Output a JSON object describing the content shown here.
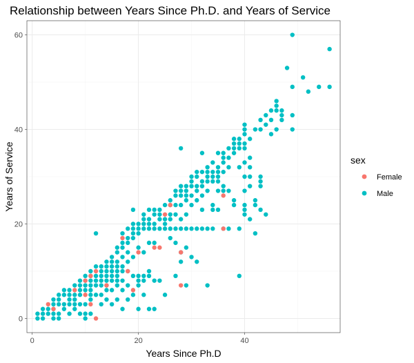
{
  "chart_data": {
    "type": "scatter",
    "title": "Relationship between Years Since Ph.D. and Years of Service",
    "xlabel": "Years Since Ph.D",
    "ylabel": "Years of Service",
    "xlim": [
      -1,
      58
    ],
    "ylim": [
      -3,
      63
    ],
    "x_ticks": [
      0,
      20,
      40
    ],
    "y_ticks": [
      0,
      20,
      40,
      60
    ],
    "grid": true,
    "legend": {
      "title": "sex",
      "position": "right",
      "entries": [
        {
          "name": "Female",
          "color": "#F8766D"
        },
        {
          "name": "Male",
          "color": "#00BFC4"
        }
      ]
    },
    "series": [
      {
        "name": "Male",
        "color": "#00BFC4",
        "points": [
          [
            1,
            0
          ],
          [
            1,
            1
          ],
          [
            2,
            0
          ],
          [
            2,
            1
          ],
          [
            2,
            2
          ],
          [
            3,
            1
          ],
          [
            3,
            2
          ],
          [
            4,
            0
          ],
          [
            4,
            1
          ],
          [
            4,
            2
          ],
          [
            4,
            3
          ],
          [
            4,
            4
          ],
          [
            5,
            0
          ],
          [
            5,
            1
          ],
          [
            5,
            3
          ],
          [
            5,
            4
          ],
          [
            5,
            5
          ],
          [
            6,
            2
          ],
          [
            6,
            3
          ],
          [
            6,
            5
          ],
          [
            6,
            6
          ],
          [
            7,
            1
          ],
          [
            7,
            3
          ],
          [
            7,
            4
          ],
          [
            7,
            5
          ],
          [
            7,
            6
          ],
          [
            8,
            2
          ],
          [
            8,
            3
          ],
          [
            8,
            4
          ],
          [
            8,
            5
          ],
          [
            8,
            7
          ],
          [
            9,
            1
          ],
          [
            9,
            3
          ],
          [
            9,
            5
          ],
          [
            9,
            6
          ],
          [
            9,
            7
          ],
          [
            9,
            8
          ],
          [
            10,
            0
          ],
          [
            10,
            1
          ],
          [
            10,
            3
          ],
          [
            10,
            6
          ],
          [
            10,
            7
          ],
          [
            10,
            8
          ],
          [
            10,
            9
          ],
          [
            11,
            1
          ],
          [
            11,
            4
          ],
          [
            11,
            5
          ],
          [
            11,
            6
          ],
          [
            11,
            7
          ],
          [
            11,
            8
          ],
          [
            11,
            9
          ],
          [
            11,
            10
          ],
          [
            12,
            5
          ],
          [
            12,
            7
          ],
          [
            12,
            8
          ],
          [
            12,
            9
          ],
          [
            12,
            11
          ],
          [
            12,
            18
          ],
          [
            13,
            3
          ],
          [
            13,
            5
          ],
          [
            13,
            7
          ],
          [
            13,
            8
          ],
          [
            13,
            9
          ],
          [
            13,
            10
          ],
          [
            13,
            11
          ],
          [
            14,
            4
          ],
          [
            14,
            6
          ],
          [
            14,
            7
          ],
          [
            14,
            8
          ],
          [
            14,
            9
          ],
          [
            14,
            10
          ],
          [
            14,
            11
          ],
          [
            14,
            12
          ],
          [
            15,
            3
          ],
          [
            15,
            6
          ],
          [
            15,
            8
          ],
          [
            15,
            9
          ],
          [
            15,
            10
          ],
          [
            15,
            11
          ],
          [
            15,
            12
          ],
          [
            15,
            13
          ],
          [
            16,
            4
          ],
          [
            16,
            7
          ],
          [
            16,
            8
          ],
          [
            16,
            9
          ],
          [
            16,
            10
          ],
          [
            16,
            11
          ],
          [
            16,
            12
          ],
          [
            16,
            14
          ],
          [
            16,
            15
          ],
          [
            17,
            2
          ],
          [
            17,
            6
          ],
          [
            17,
            8
          ],
          [
            17,
            10
          ],
          [
            17,
            11
          ],
          [
            17,
            13
          ],
          [
            17,
            15
          ],
          [
            17,
            16
          ],
          [
            17,
            18
          ],
          [
            18,
            4
          ],
          [
            18,
            7
          ],
          [
            18,
            10
          ],
          [
            18,
            12
          ],
          [
            18,
            14
          ],
          [
            18,
            16
          ],
          [
            18,
            17
          ],
          [
            18,
            19
          ],
          [
            19,
            5
          ],
          [
            19,
            9
          ],
          [
            19,
            13
          ],
          [
            19,
            17
          ],
          [
            19,
            18
          ],
          [
            19,
            19
          ],
          [
            19,
            20
          ],
          [
            19,
            23
          ],
          [
            20,
            2
          ],
          [
            20,
            7
          ],
          [
            20,
            8
          ],
          [
            20,
            9
          ],
          [
            20,
            15
          ],
          [
            20,
            18
          ],
          [
            20,
            19
          ],
          [
            20,
            20
          ],
          [
            21,
            5
          ],
          [
            21,
            8
          ],
          [
            21,
            9
          ],
          [
            21,
            14
          ],
          [
            21,
            19
          ],
          [
            21,
            20
          ],
          [
            21,
            21
          ],
          [
            21,
            22
          ],
          [
            22,
            2
          ],
          [
            22,
            9
          ],
          [
            22,
            10
          ],
          [
            22,
            16
          ],
          [
            22,
            19
          ],
          [
            22,
            20
          ],
          [
            22,
            21
          ],
          [
            22,
            23
          ],
          [
            23,
            2
          ],
          [
            23,
            8
          ],
          [
            23,
            16
          ],
          [
            23,
            19
          ],
          [
            23,
            20
          ],
          [
            23,
            22
          ],
          [
            23,
            23
          ],
          [
            24,
            8
          ],
          [
            24,
            19
          ],
          [
            24,
            21
          ],
          [
            24,
            22
          ],
          [
            24,
            23
          ],
          [
            25,
            5
          ],
          [
            25,
            19
          ],
          [
            25,
            20
          ],
          [
            25,
            21
          ],
          [
            25,
            24
          ],
          [
            26,
            17
          ],
          [
            26,
            19
          ],
          [
            26,
            21
          ],
          [
            26,
            22
          ],
          [
            26,
            24
          ],
          [
            26,
            25
          ],
          [
            27,
            9
          ],
          [
            27,
            16
          ],
          [
            27,
            19
          ],
          [
            27,
            22
          ],
          [
            27,
            24
          ],
          [
            27,
            26
          ],
          [
            27,
            27
          ],
          [
            28,
            12
          ],
          [
            28,
            14
          ],
          [
            28,
            19
          ],
          [
            28,
            21
          ],
          [
            28,
            24
          ],
          [
            28,
            26
          ],
          [
            28,
            27
          ],
          [
            28,
            28
          ],
          [
            28,
            36
          ],
          [
            29,
            7
          ],
          [
            29,
            15
          ],
          [
            29,
            19
          ],
          [
            29,
            22
          ],
          [
            29,
            25
          ],
          [
            29,
            26
          ],
          [
            29,
            27
          ],
          [
            29,
            28
          ],
          [
            30,
            13
          ],
          [
            30,
            19
          ],
          [
            30,
            24
          ],
          [
            30,
            26
          ],
          [
            30,
            28
          ],
          [
            30,
            29
          ],
          [
            30,
            30
          ],
          [
            31,
            12
          ],
          [
            31,
            19
          ],
          [
            31,
            25
          ],
          [
            31,
            27
          ],
          [
            31,
            28
          ],
          [
            31,
            30
          ],
          [
            31,
            31
          ],
          [
            32,
            19
          ],
          [
            32,
            23
          ],
          [
            32,
            26
          ],
          [
            32,
            28
          ],
          [
            32,
            29
          ],
          [
            32,
            31
          ],
          [
            32,
            35
          ],
          [
            33,
            7
          ],
          [
            33,
            19
          ],
          [
            33,
            27
          ],
          [
            33,
            29
          ],
          [
            33,
            30
          ],
          [
            33,
            31
          ],
          [
            33,
            32
          ],
          [
            34,
            19
          ],
          [
            34,
            23
          ],
          [
            34,
            24
          ],
          [
            34,
            29
          ],
          [
            34,
            30
          ],
          [
            34,
            31
          ],
          [
            34,
            33
          ],
          [
            35,
            23
          ],
          [
            35,
            27
          ],
          [
            35,
            29
          ],
          [
            35,
            30
          ],
          [
            35,
            31
          ],
          [
            35,
            32
          ],
          [
            35,
            35
          ],
          [
            36,
            19
          ],
          [
            36,
            27
          ],
          [
            36,
            28
          ],
          [
            36,
            31
          ],
          [
            36,
            33
          ],
          [
            36,
            34
          ],
          [
            36,
            35
          ],
          [
            37,
            19
          ],
          [
            37,
            27
          ],
          [
            37,
            32
          ],
          [
            37,
            34
          ],
          [
            37,
            36
          ],
          [
            38,
            24
          ],
          [
            38,
            25
          ],
          [
            38,
            35
          ],
          [
            38,
            36
          ],
          [
            38,
            37
          ],
          [
            38,
            38
          ],
          [
            39,
            9
          ],
          [
            39,
            19
          ],
          [
            39,
            32
          ],
          [
            39,
            36
          ],
          [
            39,
            37
          ],
          [
            39,
            38
          ],
          [
            40,
            22
          ],
          [
            40,
            23
          ],
          [
            40,
            24
          ],
          [
            40,
            27
          ],
          [
            40,
            30
          ],
          [
            40,
            33
          ],
          [
            40,
            36
          ],
          [
            40,
            37
          ],
          [
            40,
            39
          ],
          [
            40,
            40
          ],
          [
            40,
            41
          ],
          [
            41,
            21
          ],
          [
            41,
            28
          ],
          [
            41,
            30
          ],
          [
            41,
            32
          ],
          [
            41,
            34
          ],
          [
            41,
            38
          ],
          [
            42,
            18
          ],
          [
            42,
            24
          ],
          [
            42,
            25
          ],
          [
            42,
            40
          ],
          [
            43,
            23
          ],
          [
            43,
            28
          ],
          [
            43,
            29
          ],
          [
            43,
            30
          ],
          [
            43,
            40
          ],
          [
            43,
            42
          ],
          [
            44,
            22
          ],
          [
            44,
            41
          ],
          [
            44,
            43
          ],
          [
            45,
            39
          ],
          [
            45,
            42
          ],
          [
            45,
            44
          ],
          [
            46,
            40
          ],
          [
            46,
            44
          ],
          [
            46,
            45
          ],
          [
            46,
            46
          ],
          [
            47,
            42
          ],
          [
            47,
            43
          ],
          [
            47,
            44
          ],
          [
            48,
            53
          ],
          [
            49,
            40
          ],
          [
            49,
            43
          ],
          [
            49,
            49
          ],
          [
            49,
            60
          ],
          [
            51,
            51
          ],
          [
            52,
            48
          ],
          [
            54,
            49
          ],
          [
            56,
            49
          ],
          [
            56,
            57
          ]
        ]
      },
      {
        "name": "Female",
        "color": "#F8766D",
        "points": [
          [
            3,
            3
          ],
          [
            4,
            2
          ],
          [
            8,
            6
          ],
          [
            10,
            5
          ],
          [
            10,
            8
          ],
          [
            11,
            3
          ],
          [
            11,
            9
          ],
          [
            12,
            0
          ],
          [
            12,
            10
          ],
          [
            14,
            7
          ],
          [
            17,
            17
          ],
          [
            18,
            10
          ],
          [
            19,
            6
          ],
          [
            20,
            14
          ],
          [
            23,
            15
          ],
          [
            24,
            15
          ],
          [
            25,
            22
          ],
          [
            26,
            24
          ],
          [
            28,
            7
          ],
          [
            28,
            14
          ],
          [
            36,
            19
          ],
          [
            36,
            26
          ]
        ]
      }
    ]
  }
}
